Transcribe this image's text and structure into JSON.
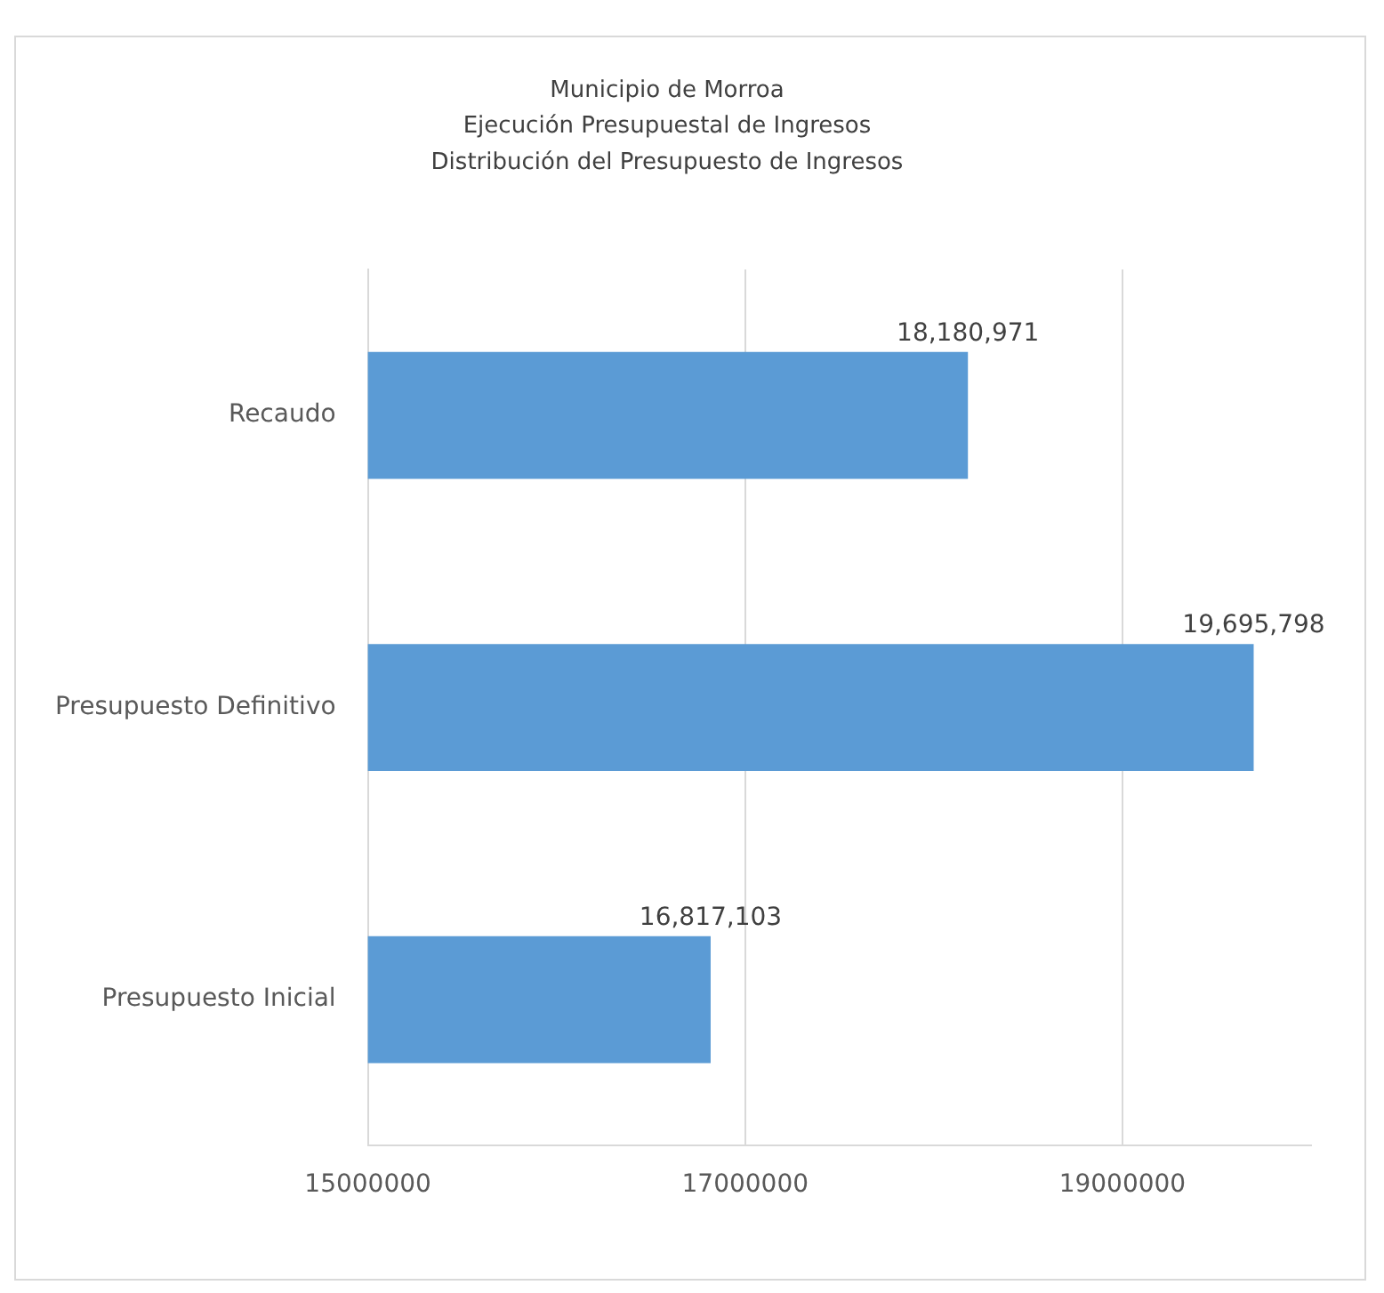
{
  "chart_data": {
    "type": "bar",
    "orientation": "horizontal",
    "title": "Municipio de Morroa\nEjecución Presupuestal de Ingresos\nDistribución del Presupuesto de Ingresos",
    "categories": [
      "Recaudo",
      "Presupuesto Definitivo",
      "Presupuesto Inicial"
    ],
    "values": [
      18180971,
      19695798,
      16817103
    ],
    "value_labels": [
      "18,180,971",
      "19,695,798",
      "16,817,103"
    ],
    "color": "#5b9bd5",
    "xlim": [
      15000000,
      20000000
    ],
    "xticks": [
      15000000,
      17000000,
      19000000
    ],
    "grid": "x",
    "legend": false
  }
}
